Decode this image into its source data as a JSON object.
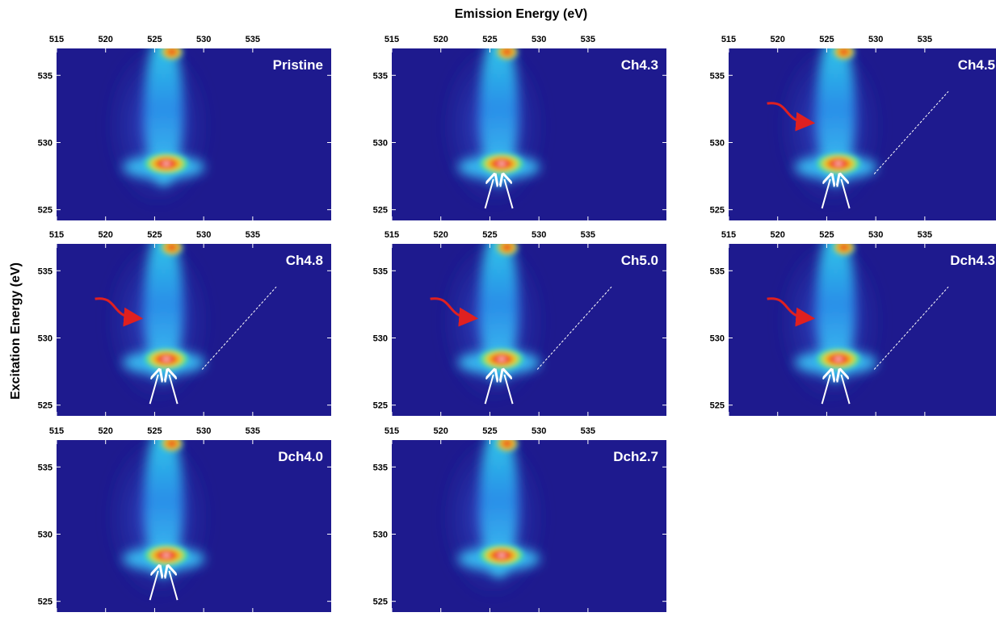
{
  "xlabel": "Emission Energy (eV)",
  "ylabel": "Excitation Energy (eV)",
  "chart_data": [
    {
      "type": "heatmap",
      "title": "Pristine",
      "xlim": [
        515,
        543
      ],
      "ylim": [
        524.2,
        537
      ],
      "xticks": [
        515,
        520,
        525,
        530,
        535
      ],
      "yticks": [
        525,
        530,
        535
      ]
    },
    {
      "type": "heatmap",
      "title": "Ch4.3",
      "xlim": [
        515,
        543
      ],
      "ylim": [
        524.2,
        537
      ],
      "xticks": [
        515,
        520,
        525,
        530,
        535
      ],
      "yticks": [
        525,
        530,
        535
      ]
    },
    {
      "type": "heatmap",
      "title": "Ch4.5",
      "xlim": [
        515,
        543
      ],
      "ylim": [
        524.2,
        537
      ],
      "xticks": [
        515,
        520,
        525,
        530,
        535
      ],
      "yticks": [
        525,
        530,
        535
      ]
    },
    {
      "type": "heatmap",
      "title": "Ch4.8",
      "xlim": [
        515,
        543
      ],
      "ylim": [
        524.2,
        537
      ],
      "xticks": [
        515,
        520,
        525,
        530,
        535
      ],
      "yticks": [
        525,
        530,
        535
      ]
    },
    {
      "type": "heatmap",
      "title": "Ch5.0",
      "xlim": [
        515,
        543
      ],
      "ylim": [
        524.2,
        537
      ],
      "xticks": [
        515,
        520,
        525,
        530,
        535
      ],
      "yticks": [
        525,
        530,
        535
      ]
    },
    {
      "type": "heatmap",
      "title": "Dch4.3",
      "xlim": [
        515,
        543
      ],
      "ylim": [
        524.2,
        537
      ],
      "xticks": [
        515,
        520,
        525,
        530,
        535
      ],
      "yticks": [
        525,
        530,
        535
      ]
    },
    {
      "type": "heatmap",
      "title": "Dch4.0",
      "xlim": [
        515,
        543
      ],
      "ylim": [
        524.2,
        537
      ],
      "xticks": [
        515,
        520,
        525,
        530,
        535
      ],
      "yticks": [
        525,
        530,
        535
      ]
    },
    {
      "type": "heatmap",
      "title": "Dch2.7",
      "xlim": [
        515,
        543
      ],
      "ylim": [
        524.2,
        537
      ],
      "xticks": [
        515,
        520,
        525,
        530,
        535
      ],
      "yticks": [
        525,
        530,
        535
      ]
    }
  ]
}
